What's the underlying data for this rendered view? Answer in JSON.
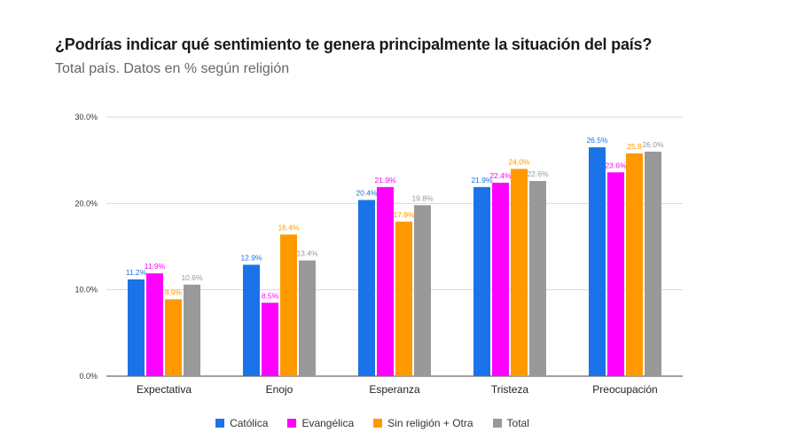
{
  "header": {
    "title": "¿Podrías indicar qué sentimiento te genera principalmente la situación del país?",
    "subtitle": "Total país. Datos en % según religión"
  },
  "chart_data": {
    "type": "bar",
    "categories": [
      "Expectativa",
      "Enojo",
      "Esperanza",
      "Tristeza",
      "Preocupación"
    ],
    "series": [
      {
        "name": "Católica",
        "color": "#1a73e8",
        "values": [
          11.2,
          12.9,
          20.4,
          21.9,
          26.5
        ]
      },
      {
        "name": "Evangélica",
        "color": "#ff00ff",
        "values": [
          11.9,
          8.5,
          21.9,
          22.4,
          23.6
        ]
      },
      {
        "name": "Sin religión + Otra",
        "color": "#ff9900",
        "values": [
          8.9,
          16.4,
          17.9,
          24.0,
          25.8
        ]
      },
      {
        "name": "Total",
        "color": "#999999",
        "values": [
          10.6,
          13.4,
          19.8,
          22.6,
          26.0
        ]
      }
    ],
    "data_labels": [
      [
        "11.2%",
        "12.9%",
        "20.4%",
        "21.9%",
        "26.5%"
      ],
      [
        "11.9%",
        "8.5%",
        "21.9%",
        "22.4%",
        "23.6%"
      ],
      [
        "8.9%",
        "16.4%",
        "17.9%",
        "24.0%",
        "25.8"
      ],
      [
        "10.6%",
        "13.4%",
        "19.8%",
        "22.6%",
        "26.0%"
      ]
    ],
    "y_ticks": [
      0,
      10,
      20,
      30
    ],
    "y_tick_labels": [
      "0.0%",
      "10.0%",
      "20.0%",
      "30.0%"
    ],
    "ylim": [
      0,
      30
    ],
    "grid": true,
    "legend_position": "bottom"
  }
}
